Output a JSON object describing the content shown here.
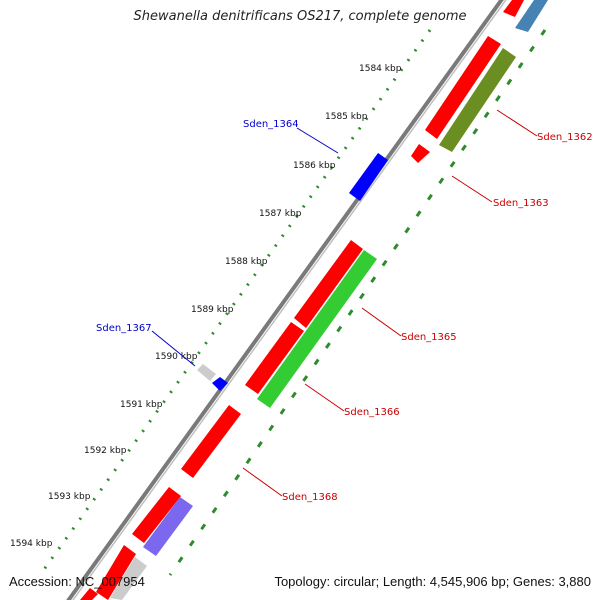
{
  "title": "Shewanella denitrificans OS217, complete genome",
  "accession_text": "Accession: NC_007954",
  "summary_text": "Topology: circular; Length: 4,545,906 bp; Genes: 3,880",
  "colors": {
    "backbone": "#8a8a8a",
    "forward_cds": "#ff0000",
    "reverse_cds": "#ff0000",
    "blue_feature": "#0000ff",
    "grey_feature": "#c8c8c8",
    "olive_rna": "#6b8e23",
    "green_rna": "#33cc33",
    "purple_rna": "#7b68ee",
    "steelblue_rna": "#4682b4",
    "tick_dots": "#2e8b2e",
    "tick_dashes": "#2e8b2e",
    "label_red": "#cc0000",
    "label_blue": "#0000cc"
  },
  "ticks": [
    {
      "label": "1584 kbp"
    },
    {
      "label": "1585 kbp"
    },
    {
      "label": "1586 kbp"
    },
    {
      "label": "1587 kbp"
    },
    {
      "label": "1588 kbp"
    },
    {
      "label": "1589 kbp"
    },
    {
      "label": "1590 kbp"
    },
    {
      "label": "1591 kbp"
    },
    {
      "label": "1592 kbp"
    },
    {
      "label": "1593 kbp"
    },
    {
      "label": "1594 kbp"
    }
  ],
  "gene_labels": [
    {
      "name": "Sden_1362",
      "color": "red"
    },
    {
      "name": "Sden_1363",
      "color": "red"
    },
    {
      "name": "Sden_1364",
      "color": "blue"
    },
    {
      "name": "Sden_1365",
      "color": "red"
    },
    {
      "name": "Sden_1366",
      "color": "red"
    },
    {
      "name": "Sden_1367",
      "color": "blue"
    },
    {
      "name": "Sden_1368",
      "color": "red"
    }
  ]
}
